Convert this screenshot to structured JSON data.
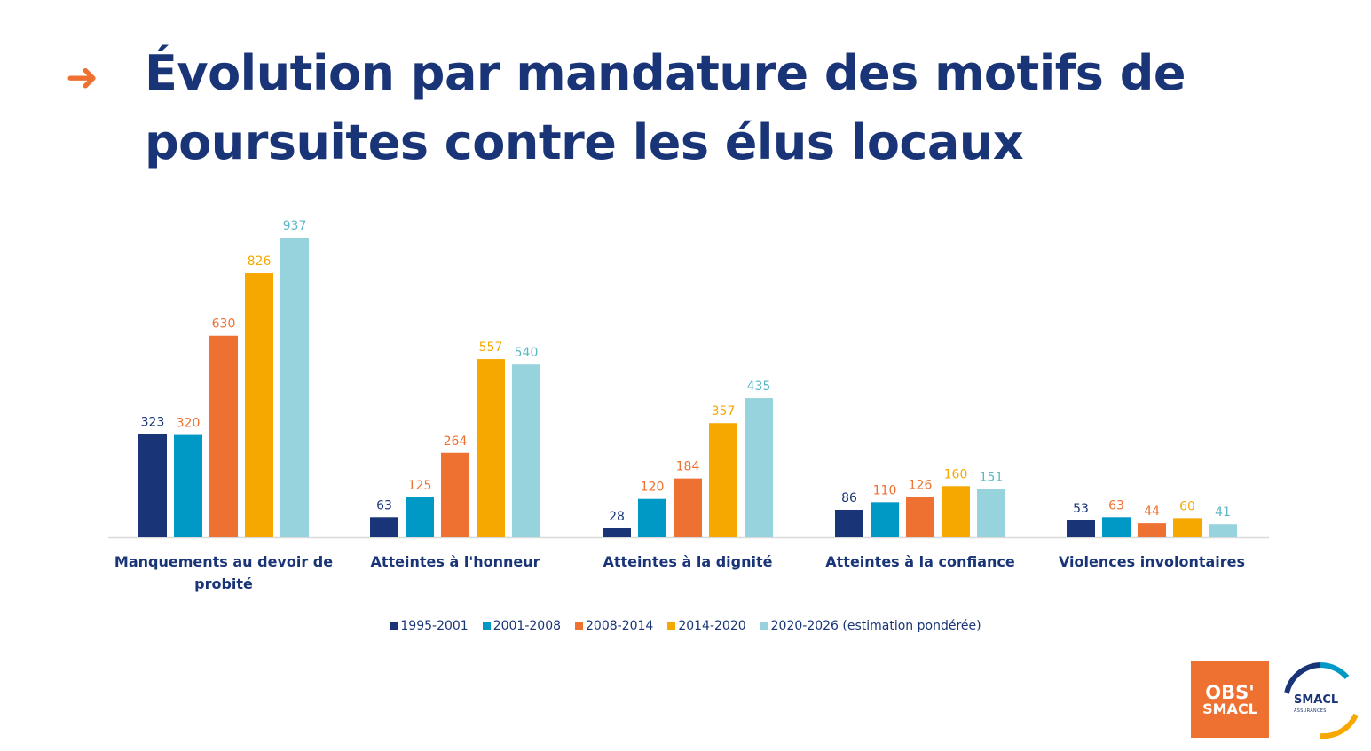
{
  "title": "Évolution par mandature des motifs de poursuites contre les élus locaux",
  "colors": {
    "title": "#1a3577",
    "accent": "#ee7131",
    "axis": "#d9d9d9",
    "series": [
      "#1a3577",
      "#0099c6",
      "#ee7131",
      "#f6a800",
      "#97d3dc"
    ]
  },
  "icons": {
    "title_arrow": "arrow-right-icon"
  },
  "chart_data": {
    "type": "bar",
    "categories": [
      "Manquements au devoir de probité",
      "Atteintes à l'honneur",
      "Atteintes à la dignité",
      "Atteintes à la confiance",
      "Violences involontaires"
    ],
    "series": [
      {
        "name": "1995-2001",
        "values": [
          323,
          63,
          28,
          86,
          53
        ]
      },
      {
        "name": "2001-2008",
        "values": [
          320,
          125,
          120,
          110,
          63
        ]
      },
      {
        "name": "2008-2014",
        "values": [
          630,
          264,
          184,
          126,
          44
        ]
      },
      {
        "name": "2014-2020",
        "values": [
          826,
          557,
          357,
          160,
          60
        ]
      },
      {
        "name": "2020-2026 (estimation pondérée)",
        "values": [
          937,
          540,
          435,
          151,
          41
        ]
      }
    ],
    "label_colors": [
      [
        "#1a3577",
        "#1a3577",
        "#1a3577",
        "#1a3577",
        "#1a3577"
      ],
      [
        "#ee7131",
        "#ee7131",
        "#ee7131",
        "#ee7131",
        "#ee7131"
      ],
      [
        "#ee7131",
        "#ee7131",
        "#ee7131",
        "#ee7131",
        "#ee7131"
      ],
      [
        "#f6a800",
        "#f6a800",
        "#f6a800",
        "#f6a800",
        "#f6a800"
      ],
      [
        "#5ab8c6",
        "#5ab8c6",
        "#5ab8c6",
        "#5ab8c6",
        "#5ab8c6"
      ]
    ],
    "ylim": [
      0,
      937
    ],
    "grid": false,
    "legend_position": "bottom"
  },
  "logos": {
    "obs_line1": "OBS'",
    "obs_line2": "SMACL",
    "smacl_name": "SMACL",
    "smacl_sub": "ASSURANCES"
  }
}
